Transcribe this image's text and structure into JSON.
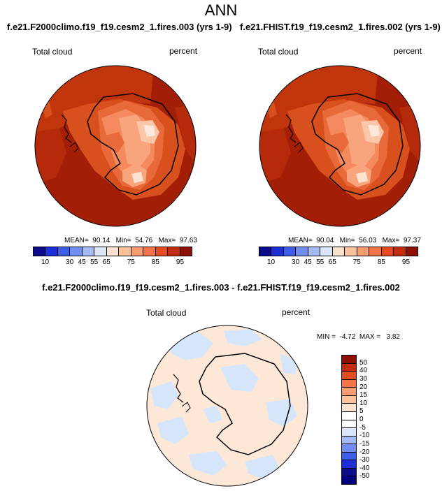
{
  "page_title": "ANN",
  "panels": [
    {
      "case": "f.e21.F2000climo.f19_f19.cesm2_1.fires.003 (yrs 1-9)",
      "variable": "Total cloud",
      "units": "percent",
      "mean_label": "MEAN=",
      "mean": "90.14",
      "min_label": "Min=",
      "min": "54.76",
      "max_label": "Max=",
      "max": "97.63"
    },
    {
      "case": "f.e21.FHIST.f19_f19.cesm2_1.fires.002 (yrs 1-9)",
      "variable": "Total cloud",
      "units": "percent",
      "mean_label": "MEAN=",
      "mean": "90.04",
      "min_label": "Min=",
      "min": "56.03",
      "max_label": "Max=",
      "max": "97.37"
    }
  ],
  "diff_panel": {
    "title": "f.e21.F2000climo.f19_f19.cesm2_1.fires.003 - f.e21.FHIST.f19_f19.cesm2_1.fires.002",
    "variable": "Total cloud",
    "units": "percent",
    "min_label": "MIN =",
    "min": "-4.72",
    "max_label": "MAX =",
    "max": "3.82"
  },
  "colorbar_abs": {
    "colors": [
      "#0b0b8c",
      "#1c2fd6",
      "#3c5ee8",
      "#6f8ef0",
      "#a3baf5",
      "#dbe6fb",
      "#fde3cf",
      "#fcc09a",
      "#f99b6d",
      "#f47445",
      "#e24d20",
      "#c12d0e",
      "#8e0f06"
    ],
    "labels": [
      "10",
      "30",
      "45",
      "55",
      "65",
      "75",
      "85",
      "95"
    ]
  },
  "colorbar_diff": {
    "colors": [
      "#8e0f06",
      "#c12d0e",
      "#e24d20",
      "#f47445",
      "#f99b6d",
      "#fcc09a",
      "#fde3cf",
      "#ffffff",
      "#ffffff",
      "#dbe6fb",
      "#a3baf5",
      "#6f8ef0",
      "#3c5ee8",
      "#1c2fd6",
      "#0b0b8c",
      "#000080"
    ],
    "labels": [
      "50",
      "40",
      "30",
      "20",
      "15",
      "10",
      "5",
      "0",
      "-5",
      "-10",
      "-15",
      "-20",
      "-30",
      "-40",
      "-50"
    ]
  }
}
